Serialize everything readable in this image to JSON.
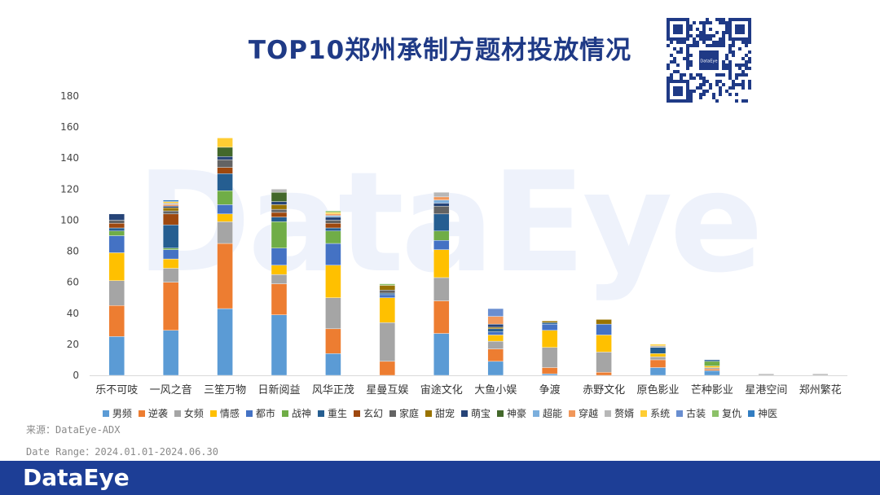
{
  "title": "TOP10郑州承制方题材投放情况",
  "watermark": "DataEye",
  "qr_label": "DataEye",
  "source": "来源：DataEye-ADX",
  "date_range": "Date Range：2024.01.01-2024.06.30",
  "footer_logo": "DataEye",
  "colors": {
    "title": "#1f3a86",
    "footer": "#1d3e96"
  },
  "chart_data": {
    "type": "bar",
    "stacked": true,
    "categories": [
      "乐不可吱",
      "一风之音",
      "三笙万物",
      "日新阅益",
      "风华正茂",
      "星曼互娱",
      "宙途文化",
      "大鱼小娱",
      "争渡",
      "赤野文化",
      "原色影业",
      "芒种影业",
      "星港空间",
      "郑州繁花"
    ],
    "ylim": [
      0,
      180
    ],
    "yticks": [
      0,
      20,
      40,
      60,
      80,
      100,
      120,
      140,
      160,
      180
    ],
    "grid": false,
    "legend_position": "bottom",
    "series": [
      {
        "name": "男频",
        "color": "#5b9bd5",
        "values": [
          25,
          29,
          43,
          39,
          14,
          0,
          27,
          9,
          1,
          0,
          5,
          3,
          0,
          0
        ]
      },
      {
        "name": "逆袭",
        "color": "#ed7d31",
        "values": [
          20,
          31,
          42,
          20,
          16,
          9,
          21,
          8,
          4,
          2,
          5,
          1,
          0,
          0
        ]
      },
      {
        "name": "女频",
        "color": "#a5a5a5",
        "values": [
          16,
          9,
          14,
          6,
          20,
          25,
          15,
          5,
          13,
          13,
          2,
          1,
          0,
          0
        ]
      },
      {
        "name": "情感",
        "color": "#ffc000",
        "values": [
          18,
          6,
          5,
          6,
          21,
          16,
          18,
          4,
          11,
          11,
          2,
          1,
          0,
          0
        ]
      },
      {
        "name": "都市",
        "color": "#4472c4",
        "values": [
          11,
          6,
          6,
          11,
          14,
          2,
          6,
          2,
          4,
          7,
          0,
          0,
          0,
          0
        ]
      },
      {
        "name": "战神",
        "color": "#70ad47",
        "values": [
          3,
          1,
          9,
          17,
          8,
          0,
          6,
          0,
          0,
          0,
          0,
          3,
          0,
          0
        ]
      },
      {
        "name": "重生",
        "color": "#255e91",
        "values": [
          2,
          15,
          11,
          3,
          2,
          1,
          11,
          2,
          1,
          0,
          4,
          1,
          0,
          0
        ]
      },
      {
        "name": "玄幻",
        "color": "#9e480e",
        "values": [
          3,
          7,
          4,
          3,
          3,
          0,
          0,
          0,
          0,
          0,
          0,
          0,
          0,
          0
        ]
      },
      {
        "name": "家庭",
        "color": "#636363",
        "values": [
          2,
          2,
          5,
          2,
          2,
          2,
          5,
          0,
          0,
          0,
          0,
          0,
          0,
          0
        ]
      },
      {
        "name": "甜宠",
        "color": "#997300",
        "values": [
          0,
          2,
          0,
          3,
          0,
          3,
          0,
          1,
          1,
          3,
          0,
          0,
          0,
          0
        ]
      },
      {
        "name": "萌宝",
        "color": "#264478",
        "values": [
          4,
          1,
          2,
          2,
          2,
          0,
          2,
          2,
          0,
          0,
          0,
          0,
          0,
          0
        ]
      },
      {
        "name": "神豪",
        "color": "#43682b",
        "values": [
          0,
          0,
          6,
          6,
          0,
          0,
          0,
          0,
          0,
          0,
          0,
          0,
          0,
          0
        ]
      },
      {
        "name": "超能",
        "color": "#7cafdd",
        "values": [
          0,
          0,
          0,
          0,
          1,
          0,
          2,
          0,
          0,
          0,
          0,
          0,
          0,
          0
        ]
      },
      {
        "name": "穿越",
        "color": "#f1975a",
        "values": [
          0,
          1,
          0,
          0,
          1,
          0,
          2,
          5,
          0,
          0,
          0,
          0,
          0,
          0
        ]
      },
      {
        "name": "赘婿",
        "color": "#b7b7b7",
        "values": [
          0,
          1,
          0,
          2,
          0,
          0,
          3,
          0,
          0,
          0,
          1,
          0,
          1,
          1
        ]
      },
      {
        "name": "系统",
        "color": "#ffcd33",
        "values": [
          0,
          1,
          6,
          0,
          1,
          0,
          0,
          0,
          0,
          0,
          1,
          0,
          0,
          0
        ]
      },
      {
        "name": "古装",
        "color": "#698ed0",
        "values": [
          0,
          0,
          0,
          0,
          0,
          0,
          0,
          5,
          0,
          0,
          0,
          0,
          0,
          0
        ]
      },
      {
        "name": "复仇",
        "color": "#8cc168",
        "values": [
          0,
          0,
          0,
          0,
          1,
          1,
          0,
          0,
          0,
          0,
          0,
          0,
          0,
          0
        ]
      },
      {
        "name": "神医",
        "color": "#327dc2",
        "values": [
          0,
          1,
          0,
          0,
          0,
          0,
          0,
          0,
          0,
          0,
          0,
          0,
          0,
          0
        ]
      }
    ]
  }
}
